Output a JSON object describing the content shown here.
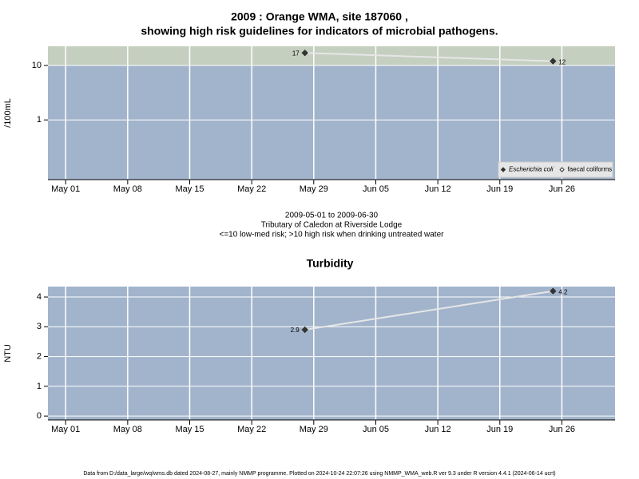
{
  "chart_data": [
    {
      "type": "scatter",
      "title": [
        "2009 : Orange WMA, site 187060 ,",
        "showing high risk guidelines for indicators of microbial pathogens."
      ],
      "ylabel": "/100mL",
      "ylog": true,
      "ylim": [
        0.08,
        22.5
      ],
      "yticks": [
        1,
        10
      ],
      "guideline": 10,
      "band_colors": [
        "#a2b4cc",
        "#c5cfc0"
      ],
      "grid": true,
      "line_color": "#e6e6e6",
      "xlim": [
        "2009-04-29",
        "2009-07-02"
      ],
      "xticks": [
        {
          "value": "2009-05-01",
          "label": "May 01"
        },
        {
          "value": "2009-05-08",
          "label": "May 08"
        },
        {
          "value": "2009-05-15",
          "label": "May 15"
        },
        {
          "value": "2009-05-22",
          "label": "May 22"
        },
        {
          "value": "2009-05-29",
          "label": "May 29"
        },
        {
          "value": "2009-06-05",
          "label": "Jun 05"
        },
        {
          "value": "2009-06-12",
          "label": "Jun 12"
        },
        {
          "value": "2009-06-19",
          "label": "Jun 19"
        },
        {
          "value": "2009-06-26",
          "label": "Jun 26"
        }
      ],
      "x": [
        "2009-05-28",
        "2009-06-25"
      ],
      "series": [
        {
          "name": "Escherichia coli",
          "color": "#333333",
          "marker": "filled",
          "values": [
            17,
            12
          ]
        },
        {
          "name": "faecal coliforms",
          "color": "#333333",
          "marker": "open",
          "values": [
            null,
            null
          ]
        }
      ],
      "legend": "bottom right",
      "caption": [
        "2009-05-01 to 2009-06-30",
        "Tributary of Caledon at Riverside Lodge",
        "<=10 low-med risk; >10 high risk when drinking untreated water"
      ]
    },
    {
      "type": "scatter",
      "title": "Turbidity",
      "ylabel": "NTU",
      "ylog": false,
      "ylim": [
        -0.13,
        4.35
      ],
      "yticks": [
        0,
        1,
        2,
        3,
        4
      ],
      "band_colors": [
        "#a2b4cc"
      ],
      "grid": true,
      "line_color": "#e6e6e6",
      "xlim": [
        "2009-04-29",
        "2009-07-02"
      ],
      "xticks": [
        {
          "value": "2009-05-01",
          "label": "May 01"
        },
        {
          "value": "2009-05-08",
          "label": "May 08"
        },
        {
          "value": "2009-05-15",
          "label": "May 15"
        },
        {
          "value": "2009-05-22",
          "label": "May 22"
        },
        {
          "value": "2009-05-29",
          "label": "May 29"
        },
        {
          "value": "2009-06-05",
          "label": "Jun 05"
        },
        {
          "value": "2009-06-12",
          "label": "Jun 12"
        },
        {
          "value": "2009-06-19",
          "label": "Jun 19"
        },
        {
          "value": "2009-06-26",
          "label": "Jun 26"
        }
      ],
      "x": [
        "2009-05-28",
        "2009-06-25"
      ],
      "series": [
        {
          "name": "Turbidity",
          "color": "#333333",
          "marker": "filled",
          "values": [
            2.9,
            4.2
          ]
        }
      ]
    }
  ],
  "footer": "Data from D:/data_large/wq/wms.db dated 2024-08-27, mainly NMMP programme. Plotted on 2024-10-24 22:07:26 using NMMP_WMA_web.R ver 9.3 under R version 4.4.1 (2024-06-14 ucrt)"
}
